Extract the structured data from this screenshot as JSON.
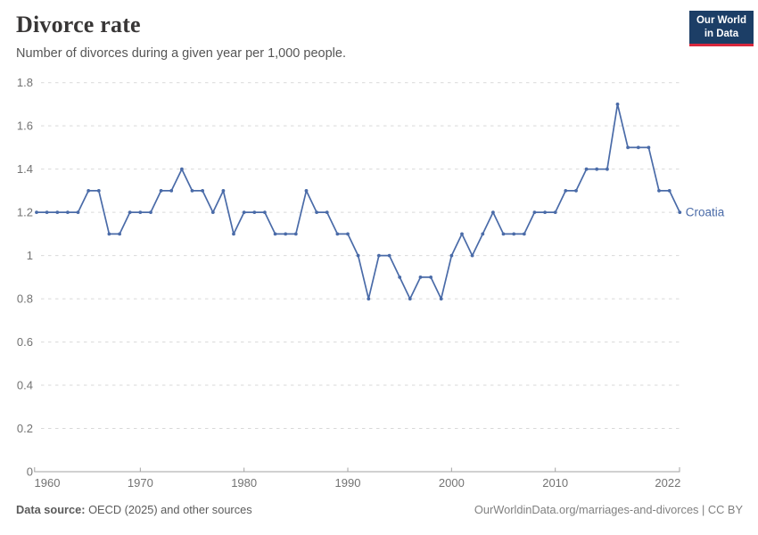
{
  "header": {
    "title": "Divorce rate",
    "subtitle": "Number of divorces during a given year per 1,000 people."
  },
  "logo": {
    "line1": "Our World",
    "line2": "in Data",
    "bg_color": "#1c3e66",
    "accent_color": "#d8273d"
  },
  "chart_data": {
    "type": "line",
    "title": "Divorce rate",
    "subtitle": "Number of divorces during a given year per 1,000 people.",
    "entity_label": "Croatia",
    "x": [
      1960,
      1961,
      1962,
      1963,
      1964,
      1965,
      1966,
      1967,
      1968,
      1969,
      1970,
      1971,
      1972,
      1973,
      1974,
      1975,
      1976,
      1977,
      1978,
      1979,
      1980,
      1981,
      1982,
      1983,
      1984,
      1985,
      1986,
      1987,
      1988,
      1989,
      1990,
      1991,
      1992,
      1993,
      1994,
      1995,
      1996,
      1997,
      1998,
      1999,
      2000,
      2001,
      2002,
      2003,
      2004,
      2005,
      2006,
      2007,
      2008,
      2009,
      2010,
      2011,
      2012,
      2013,
      2014,
      2015,
      2016,
      2017,
      2018,
      2019,
      2020,
      2021,
      2022
    ],
    "series": [
      {
        "name": "Croatia",
        "color": "#4a6ba8",
        "values": [
          1.2,
          1.2,
          1.2,
          1.2,
          1.2,
          1.3,
          1.3,
          1.1,
          1.1,
          1.2,
          1.2,
          1.2,
          1.3,
          1.3,
          1.4,
          1.3,
          1.3,
          1.2,
          1.3,
          1.1,
          1.2,
          1.2,
          1.2,
          1.1,
          1.1,
          1.1,
          1.3,
          1.2,
          1.2,
          1.1,
          1.1,
          1.0,
          0.8,
          1.0,
          1.0,
          0.9,
          0.8,
          0.9,
          0.9,
          0.8,
          1.0,
          1.1,
          1.0,
          1.1,
          1.2,
          1.1,
          1.1,
          1.1,
          1.2,
          1.2,
          1.2,
          1.3,
          1.3,
          1.4,
          1.4,
          1.4,
          1.7,
          1.5,
          1.5,
          1.5,
          1.3,
          1.3,
          1.2
        ]
      }
    ],
    "xlim": [
      1960,
      2022
    ],
    "ylim": [
      0,
      1.8
    ],
    "y_ticks": [
      0,
      0.2,
      0.4,
      0.6,
      0.8,
      1,
      1.2,
      1.4,
      1.6,
      1.8
    ],
    "x_ticks": [
      1960,
      1970,
      1980,
      1990,
      2000,
      2010,
      2022
    ],
    "grid": "horizontal-dashed",
    "legend_position": "end-of-line"
  },
  "footer": {
    "source_label": "Data source:",
    "source_text": "OECD (2025) and other sources",
    "attribution": "OurWorldinData.org/marriages-and-divorces | CC BY"
  },
  "colors": {
    "line": "#4a6ba8",
    "grid": "#d9d9d9",
    "axis": "#a3a3a3",
    "tick_label": "#737373",
    "entity_label": "#4a6ba8"
  }
}
